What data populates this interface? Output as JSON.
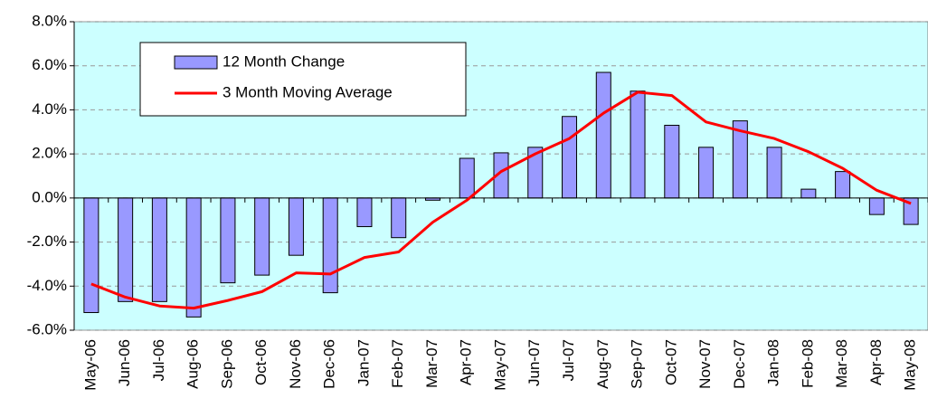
{
  "chart_data": {
    "type": "bar_line",
    "categories": [
      "May-06",
      "Jun-06",
      "Jul-06",
      "Aug-06",
      "Sep-06",
      "Oct-06",
      "Nov-06",
      "Dec-06",
      "Jan-07",
      "Feb-07",
      "Mar-07",
      "Apr-07",
      "May-07",
      "Jun-07",
      "Jul-07",
      "Aug-07",
      "Sep-07",
      "Oct-07",
      "Nov-07",
      "Dec-07",
      "Jan-08",
      "Feb-08",
      "Mar-08",
      "Apr-08",
      "May-08"
    ],
    "series": [
      {
        "name": "12 Month Change",
        "kind": "bar",
        "color": "#9999ff",
        "values": [
          -5.2,
          -4.7,
          -4.7,
          -5.4,
          -3.85,
          -3.5,
          -2.6,
          -4.3,
          -1.3,
          -1.8,
          -0.1,
          1.8,
          2.05,
          2.3,
          3.7,
          5.7,
          4.85,
          3.3,
          2.3,
          3.5,
          2.3,
          0.4,
          1.2,
          -0.75,
          -1.2
        ]
      },
      {
        "name": "3 Month Moving Average",
        "kind": "line",
        "color": "#ff0000",
        "values": [
          -3.9,
          -4.5,
          -4.9,
          -5.0,
          -4.65,
          -4.25,
          -3.4,
          -3.45,
          -2.7,
          -2.45,
          -1.1,
          -0.1,
          1.2,
          2.0,
          2.7,
          3.85,
          4.8,
          4.65,
          3.45,
          3.05,
          2.7,
          2.1,
          1.35,
          0.35,
          -0.25
        ]
      }
    ],
    "ylim": [
      -6,
      8
    ],
    "yticks": [
      {
        "value": -6,
        "label": "-6.0%"
      },
      {
        "value": -4,
        "label": "-4.0%"
      },
      {
        "value": -2,
        "label": "-2.0%"
      },
      {
        "value": 0,
        "label": "0.0%"
      },
      {
        "value": 2,
        "label": "2.0%"
      },
      {
        "value": 4,
        "label": "4.0%"
      },
      {
        "value": 6,
        "label": "6.0%"
      },
      {
        "value": 8,
        "label": "8.0%"
      }
    ],
    "grid": true,
    "plot_background": "#ccffff"
  }
}
